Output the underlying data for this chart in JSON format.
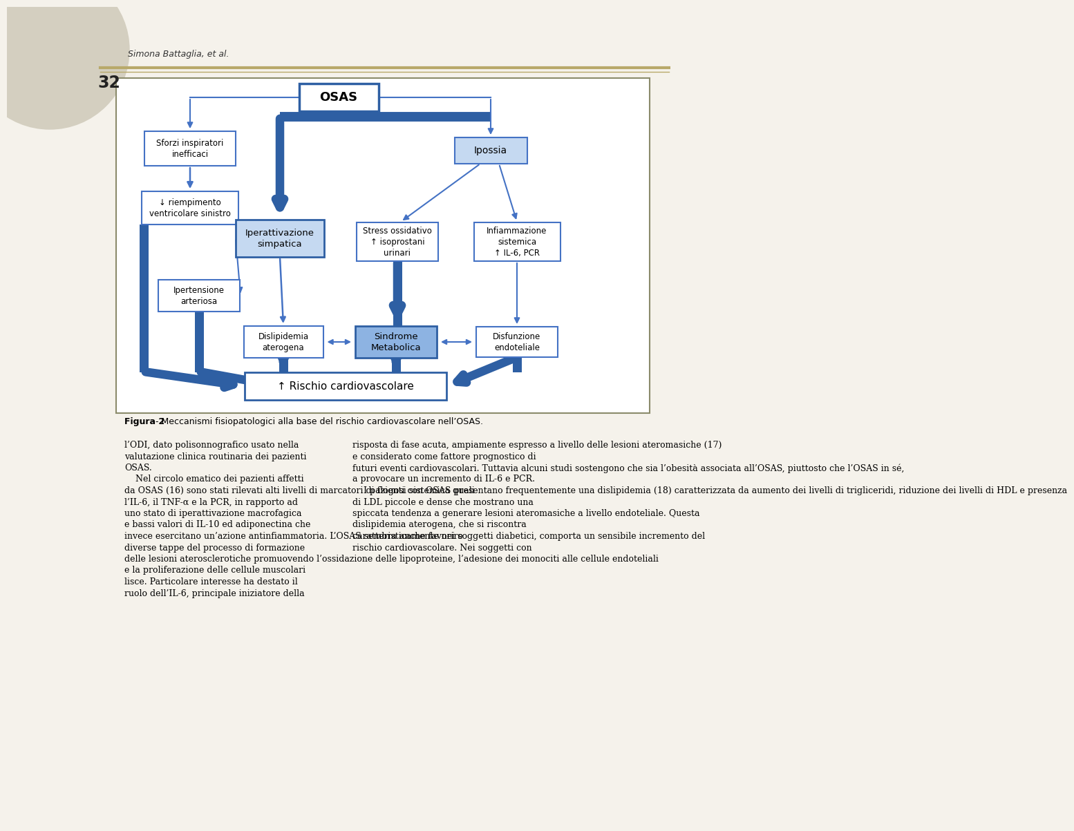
{
  "page_bg": "#f5f2eb",
  "diagram_bg": "#ffffff",
  "header_author": "Simona Battaglia, et al.",
  "header_page": "32",
  "header_line_color": "#b8a96a",
  "fig_caption_bold": "Figura 2",
  "fig_caption_rest": " - Meccanismi fisiopatologici alla base del rischio cardiovascolare nell’OSAS.",
  "body_text_left": [
    "l’ODI, dato polisonnografico usato nella",
    "valutazione clinica routinaria dei pazienti",
    "OSAS.",
    "    Nel circolo ematico dei pazienti affetti",
    "da OSAS (16) sono stati rilevati alti livelli di marcatori di flogosi sistemica quali",
    "l’IL-6, il TNF-α e la PCR, in rapporto ad",
    "uno stato di iperattivazione macrofagica",
    "e bassi valori di IL-10 ed adiponectina che",
    "invece esercitano un’azione antinfiammatoria. L’OSAS sembra anche favorire",
    "diverse tappe del processo di formazione",
    "delle lesioni aterosclerotiche promuovendo l’ossidazione delle lipoproteine, l’adesione dei monociti alle cellule endoteliali",
    "e la proliferazione delle cellule muscolari",
    "lisce. Particolare interesse ha destato il",
    "ruolo dell’IL-6, principale iniziatore della"
  ],
  "body_text_right": [
    "risposta di fase acuta, ampiamente espresso a livello delle lesioni ateromasiche (17)",
    "e considerato come fattore prognostico di",
    "futuri eventi cardiovascolari. Tuttavia alcuni studi sostengono che sia l’obesità associata all’OSAS, piuttosto che l’OSAS in sé,",
    "a provocare un incremento di IL-6 e PCR.",
    "    I pazienti con OSAS presentano frequentemente una dislipidemia (18) caratterizzata da aumento dei livelli di trigliceridi, riduzione dei livelli di HDL e presenza",
    "di LDL piccole e dense che mostrano una",
    "spiccata tendenza a generare lesioni ateromasiche a livello endoteliale. Questa",
    "dislipidemia aterogena, che si riscontra",
    "caratteristicamente nei soggetti diabetici, comporta un sensibile incremento del",
    "rischio cardiovascolare. Nei soggetti con"
  ],
  "arrow_color_thin": "#4472c4",
  "arrow_color_thick": "#2e5fa3",
  "box_stroke_normal": "#4472c4",
  "box_stroke_bold": "#2e5fa3",
  "box_fill_white": "#ffffff",
  "box_fill_light_blue": "#c5d9f1",
  "box_fill_medium_blue": "#8db3e2",
  "diagram_border": "#8b8b6b"
}
